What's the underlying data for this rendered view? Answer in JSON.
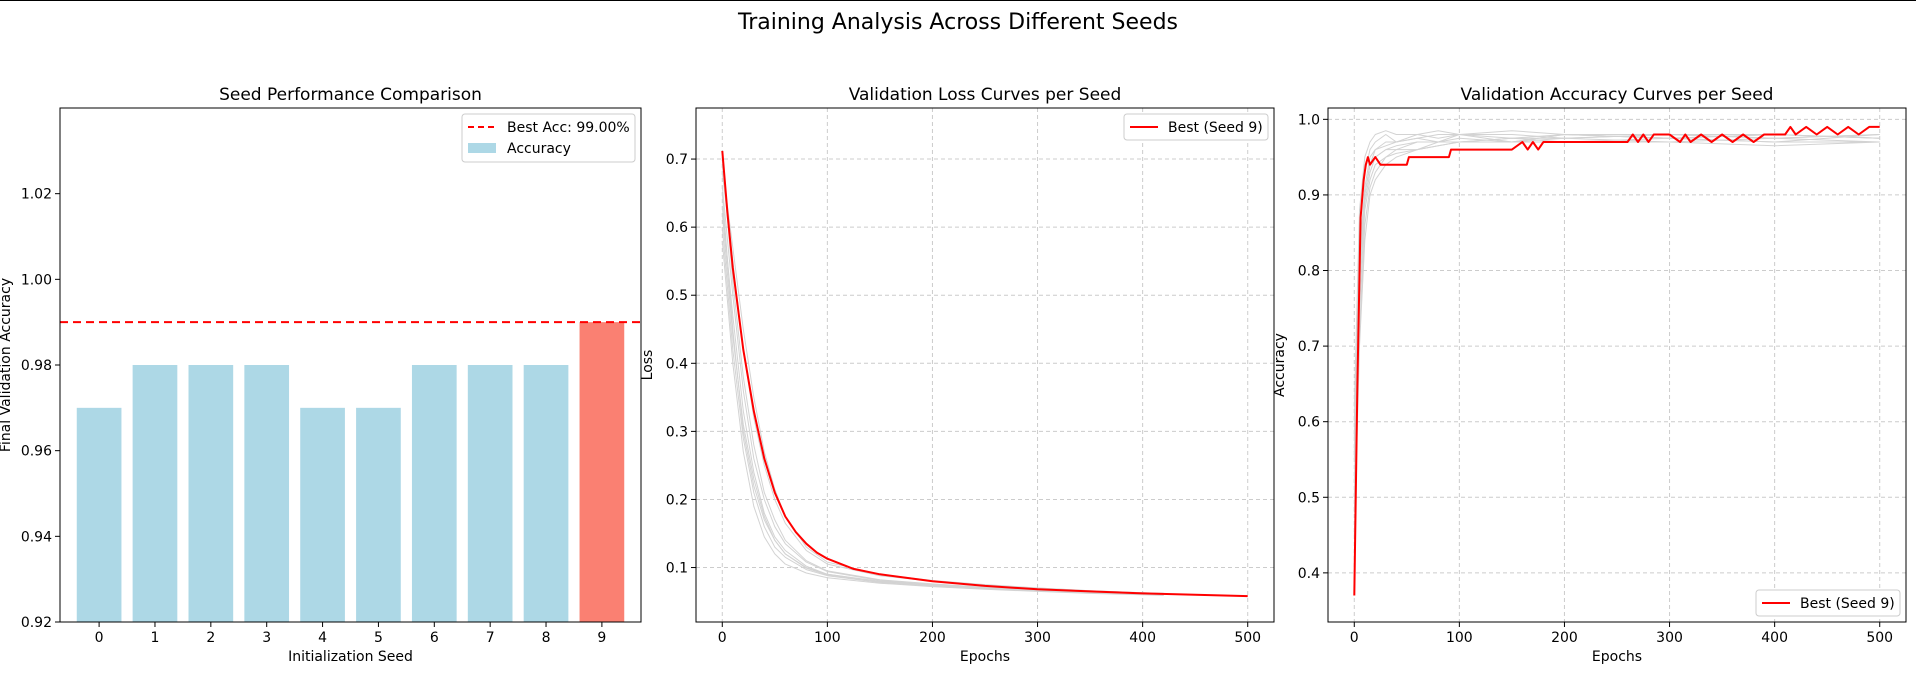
{
  "figure_title": "Training Analysis Across Different Seeds",
  "colors": {
    "bar": "#add8e6",
    "best_bar": "#fa8072",
    "best_line": "#ff0000",
    "other_lines": "#d3d3d3",
    "grid": "#cccccc"
  },
  "chart_data": [
    {
      "type": "bar",
      "title": "Seed Performance Comparison",
      "xlabel": "Initialization Seed",
      "ylabel": "Final Validation Accuracy",
      "categories": [
        "0",
        "1",
        "2",
        "3",
        "4",
        "5",
        "6",
        "7",
        "8",
        "9"
      ],
      "values": [
        0.97,
        0.98,
        0.98,
        0.98,
        0.97,
        0.97,
        0.98,
        0.98,
        0.98,
        0.99
      ],
      "highlight_index": 9,
      "ylim": [
        0.92,
        1.04
      ],
      "yticks": [
        0.92,
        0.94,
        0.96,
        0.98,
        1.0,
        1.02
      ],
      "ytick_labels": [
        "0.92",
        "0.94",
        "0.96",
        "0.98",
        "1.00",
        "1.02"
      ],
      "reference_line": {
        "y": 0.99,
        "label": "Best Acc: 99.00%",
        "style": "dashed"
      },
      "legend": [
        "Best Acc: 99.00%",
        "Accuracy"
      ],
      "legend_position": "top-right",
      "grid": false
    },
    {
      "type": "line",
      "title": "Validation Loss Curves per Seed",
      "xlabel": "Epochs",
      "ylabel": "Loss",
      "xlim": [
        -25,
        525
      ],
      "ylim": [
        0.02,
        0.775
      ],
      "xticks": [
        0,
        100,
        200,
        300,
        400,
        500
      ],
      "yticks": [
        0.1,
        0.2,
        0.3,
        0.4,
        0.5,
        0.6,
        0.7
      ],
      "ytick_labels": [
        "0.1",
        "0.2",
        "0.3",
        "0.4",
        "0.5",
        "0.6",
        "0.7"
      ],
      "series": [
        {
          "name": "Best (Seed 9)",
          "highlight": true,
          "x": [
            0,
            5,
            10,
            20,
            30,
            40,
            50,
            60,
            70,
            80,
            90,
            100,
            125,
            150,
            200,
            250,
            300,
            350,
            400,
            450,
            500
          ],
          "y": [
            0.712,
            0.62,
            0.54,
            0.42,
            0.33,
            0.26,
            0.21,
            0.175,
            0.152,
            0.135,
            0.122,
            0.113,
            0.098,
            0.09,
            0.08,
            0.073,
            0.068,
            0.065,
            0.062,
            0.06,
            0.058
          ]
        },
        {
          "x": [
            0,
            10,
            20,
            30,
            40,
            50,
            60,
            80,
            100,
            150,
            200,
            250,
            300,
            350,
            400,
            420
          ],
          "y": [
            0.65,
            0.45,
            0.3,
            0.22,
            0.17,
            0.14,
            0.12,
            0.1,
            0.09,
            0.08,
            0.075,
            0.07,
            0.066,
            0.063,
            0.061,
            0.06
          ]
        },
        {
          "x": [
            0,
            10,
            20,
            30,
            40,
            50,
            60,
            80,
            100,
            150,
            200,
            250,
            300,
            350,
            400,
            420
          ],
          "y": [
            0.7,
            0.52,
            0.38,
            0.28,
            0.21,
            0.17,
            0.14,
            0.11,
            0.095,
            0.082,
            0.076,
            0.071,
            0.067,
            0.064,
            0.062,
            0.061
          ]
        },
        {
          "x": [
            0,
            10,
            20,
            30,
            40,
            50,
            60,
            80,
            100,
            150,
            200,
            250,
            300,
            350,
            400,
            420
          ],
          "y": [
            0.6,
            0.42,
            0.29,
            0.21,
            0.16,
            0.13,
            0.115,
            0.097,
            0.088,
            0.078,
            0.073,
            0.069,
            0.066,
            0.063,
            0.061,
            0.06
          ]
        },
        {
          "x": [
            0,
            10,
            20,
            30,
            40,
            50,
            60,
            80,
            100,
            150,
            200,
            250,
            300,
            350,
            400,
            420
          ],
          "y": [
            0.68,
            0.55,
            0.42,
            0.32,
            0.25,
            0.2,
            0.165,
            0.125,
            0.105,
            0.088,
            0.08,
            0.074,
            0.07,
            0.066,
            0.063,
            0.062
          ]
        },
        {
          "x": [
            0,
            10,
            20,
            30,
            40,
            50,
            60,
            80,
            100,
            150,
            200,
            250,
            300,
            350,
            400,
            420
          ],
          "y": [
            0.63,
            0.47,
            0.33,
            0.24,
            0.18,
            0.145,
            0.125,
            0.102,
            0.09,
            0.079,
            0.074,
            0.07,
            0.067,
            0.064,
            0.062,
            0.061
          ]
        },
        {
          "x": [
            0,
            10,
            20,
            30,
            40,
            50,
            60,
            80,
            100,
            150,
            200,
            250,
            300,
            350,
            400,
            420
          ],
          "y": [
            0.58,
            0.4,
            0.27,
            0.19,
            0.145,
            0.12,
            0.105,
            0.092,
            0.085,
            0.077,
            0.072,
            0.068,
            0.065,
            0.062,
            0.06,
            0.059
          ]
        },
        {
          "x": [
            0,
            10,
            20,
            30,
            40,
            50,
            60,
            80,
            100,
            150,
            200,
            250,
            300,
            350,
            400,
            420
          ],
          "y": [
            0.66,
            0.5,
            0.36,
            0.26,
            0.2,
            0.16,
            0.135,
            0.108,
            0.094,
            0.081,
            0.075,
            0.07,
            0.067,
            0.064,
            0.062,
            0.061
          ]
        },
        {
          "x": [
            0,
            10,
            20,
            30,
            40,
            50,
            60,
            80,
            100,
            150,
            200,
            250,
            300,
            350,
            400,
            420
          ],
          "y": [
            0.62,
            0.44,
            0.31,
            0.23,
            0.175,
            0.14,
            0.12,
            0.099,
            0.089,
            0.079,
            0.074,
            0.07,
            0.066,
            0.063,
            0.061,
            0.06
          ]
        },
        {
          "x": [
            0,
            10,
            20,
            30,
            40,
            50,
            60,
            80,
            100,
            150,
            200,
            250,
            300,
            350,
            400,
            420
          ],
          "y": [
            0.69,
            0.57,
            0.45,
            0.35,
            0.27,
            0.215,
            0.175,
            0.13,
            0.108,
            0.09,
            0.081,
            0.075,
            0.07,
            0.066,
            0.063,
            0.062
          ]
        }
      ],
      "legend_position": "top-right",
      "grid": true
    },
    {
      "type": "line",
      "title": "Validation Accuracy Curves per Seed",
      "xlabel": "Epochs",
      "ylabel": "Accuracy",
      "xlim": [
        -25,
        525
      ],
      "ylim": [
        0.335,
        1.015
      ],
      "xticks": [
        0,
        100,
        200,
        300,
        400,
        500
      ],
      "yticks": [
        0.4,
        0.5,
        0.6,
        0.7,
        0.8,
        0.9,
        1.0
      ],
      "ytick_labels": [
        "0.4",
        "0.5",
        "0.6",
        "0.7",
        "0.8",
        "0.9",
        "1.0"
      ],
      "series": [
        {
          "name": "Best (Seed 9)",
          "highlight": true,
          "x": [
            0,
            3,
            6,
            9,
            11,
            13,
            15,
            20,
            25,
            50,
            52,
            90,
            92,
            150,
            160,
            165,
            170,
            175,
            180,
            190,
            200,
            260,
            265,
            270,
            275,
            280,
            285,
            300,
            310,
            315,
            320,
            330,
            340,
            350,
            360,
            370,
            380,
            390,
            400,
            410,
            415,
            420,
            430,
            440,
            450,
            460,
            470,
            480,
            490,
            500
          ],
          "y": [
            0.37,
            0.65,
            0.87,
            0.92,
            0.94,
            0.95,
            0.94,
            0.95,
            0.94,
            0.94,
            0.95,
            0.95,
            0.96,
            0.96,
            0.97,
            0.96,
            0.97,
            0.96,
            0.97,
            0.97,
            0.97,
            0.97,
            0.98,
            0.97,
            0.98,
            0.97,
            0.98,
            0.98,
            0.97,
            0.98,
            0.97,
            0.98,
            0.97,
            0.98,
            0.97,
            0.98,
            0.97,
            0.98,
            0.98,
            0.98,
            0.99,
            0.98,
            0.99,
            0.98,
            0.99,
            0.98,
            0.99,
            0.98,
            0.99,
            0.99
          ]
        },
        {
          "x": [
            0,
            5,
            10,
            15,
            20,
            30,
            40,
            60,
            80,
            100,
            150,
            200,
            300,
            400,
            500
          ],
          "y": [
            0.55,
            0.8,
            0.9,
            0.94,
            0.95,
            0.96,
            0.96,
            0.97,
            0.97,
            0.97,
            0.975,
            0.975,
            0.98,
            0.975,
            0.98
          ]
        },
        {
          "x": [
            0,
            5,
            10,
            15,
            20,
            30,
            40,
            60,
            80,
            100,
            150,
            200,
            300,
            400,
            500
          ],
          "y": [
            0.5,
            0.75,
            0.88,
            0.92,
            0.94,
            0.95,
            0.96,
            0.96,
            0.97,
            0.97,
            0.97,
            0.98,
            0.975,
            0.98,
            0.975
          ]
        },
        {
          "x": [
            0,
            5,
            10,
            15,
            20,
            30,
            40,
            60,
            80,
            100,
            150,
            200,
            300,
            400,
            500
          ],
          "y": [
            0.6,
            0.85,
            0.93,
            0.96,
            0.97,
            0.98,
            0.97,
            0.98,
            0.975,
            0.98,
            0.97,
            0.98,
            0.975,
            0.97,
            0.98
          ]
        },
        {
          "x": [
            0,
            5,
            10,
            15,
            20,
            30,
            40,
            60,
            80,
            100,
            150,
            200,
            300,
            400,
            500
          ],
          "y": [
            0.45,
            0.7,
            0.84,
            0.9,
            0.92,
            0.94,
            0.95,
            0.96,
            0.965,
            0.97,
            0.97,
            0.97,
            0.975,
            0.97,
            0.97
          ]
        },
        {
          "x": [
            0,
            5,
            10,
            15,
            20,
            30,
            40,
            60,
            80,
            100,
            150,
            200,
            300,
            400,
            500
          ],
          "y": [
            0.58,
            0.82,
            0.91,
            0.95,
            0.96,
            0.97,
            0.97,
            0.975,
            0.98,
            0.98,
            0.985,
            0.98,
            0.98,
            0.975,
            0.98
          ]
        },
        {
          "x": [
            0,
            5,
            10,
            15,
            20,
            30,
            40,
            60,
            80,
            100,
            150,
            200,
            300,
            400,
            500
          ],
          "y": [
            0.52,
            0.78,
            0.89,
            0.93,
            0.95,
            0.96,
            0.965,
            0.97,
            0.97,
            0.975,
            0.97,
            0.975,
            0.97,
            0.975,
            0.97
          ]
        },
        {
          "x": [
            0,
            5,
            10,
            15,
            20,
            30,
            40,
            60,
            80,
            100,
            150,
            200,
            300,
            400,
            500
          ],
          "y": [
            0.62,
            0.88,
            0.95,
            0.97,
            0.98,
            0.985,
            0.98,
            0.98,
            0.985,
            0.98,
            0.98,
            0.975,
            0.98,
            0.98,
            0.975
          ]
        },
        {
          "x": [
            0,
            5,
            10,
            15,
            20,
            30,
            40,
            60,
            80,
            100,
            150,
            200,
            300,
            400,
            500
          ],
          "y": [
            0.48,
            0.72,
            0.86,
            0.91,
            0.93,
            0.95,
            0.955,
            0.96,
            0.965,
            0.97,
            0.975,
            0.97,
            0.97,
            0.965,
            0.97
          ]
        },
        {
          "x": [
            0,
            5,
            10,
            15,
            20,
            30,
            40,
            60,
            80,
            100,
            150,
            200,
            300,
            400,
            500
          ],
          "y": [
            0.56,
            0.8,
            0.9,
            0.94,
            0.96,
            0.965,
            0.97,
            0.975,
            0.97,
            0.98,
            0.975,
            0.98,
            0.975,
            0.98,
            0.975
          ]
        }
      ],
      "legend_position": "bottom-right",
      "grid": true
    }
  ]
}
